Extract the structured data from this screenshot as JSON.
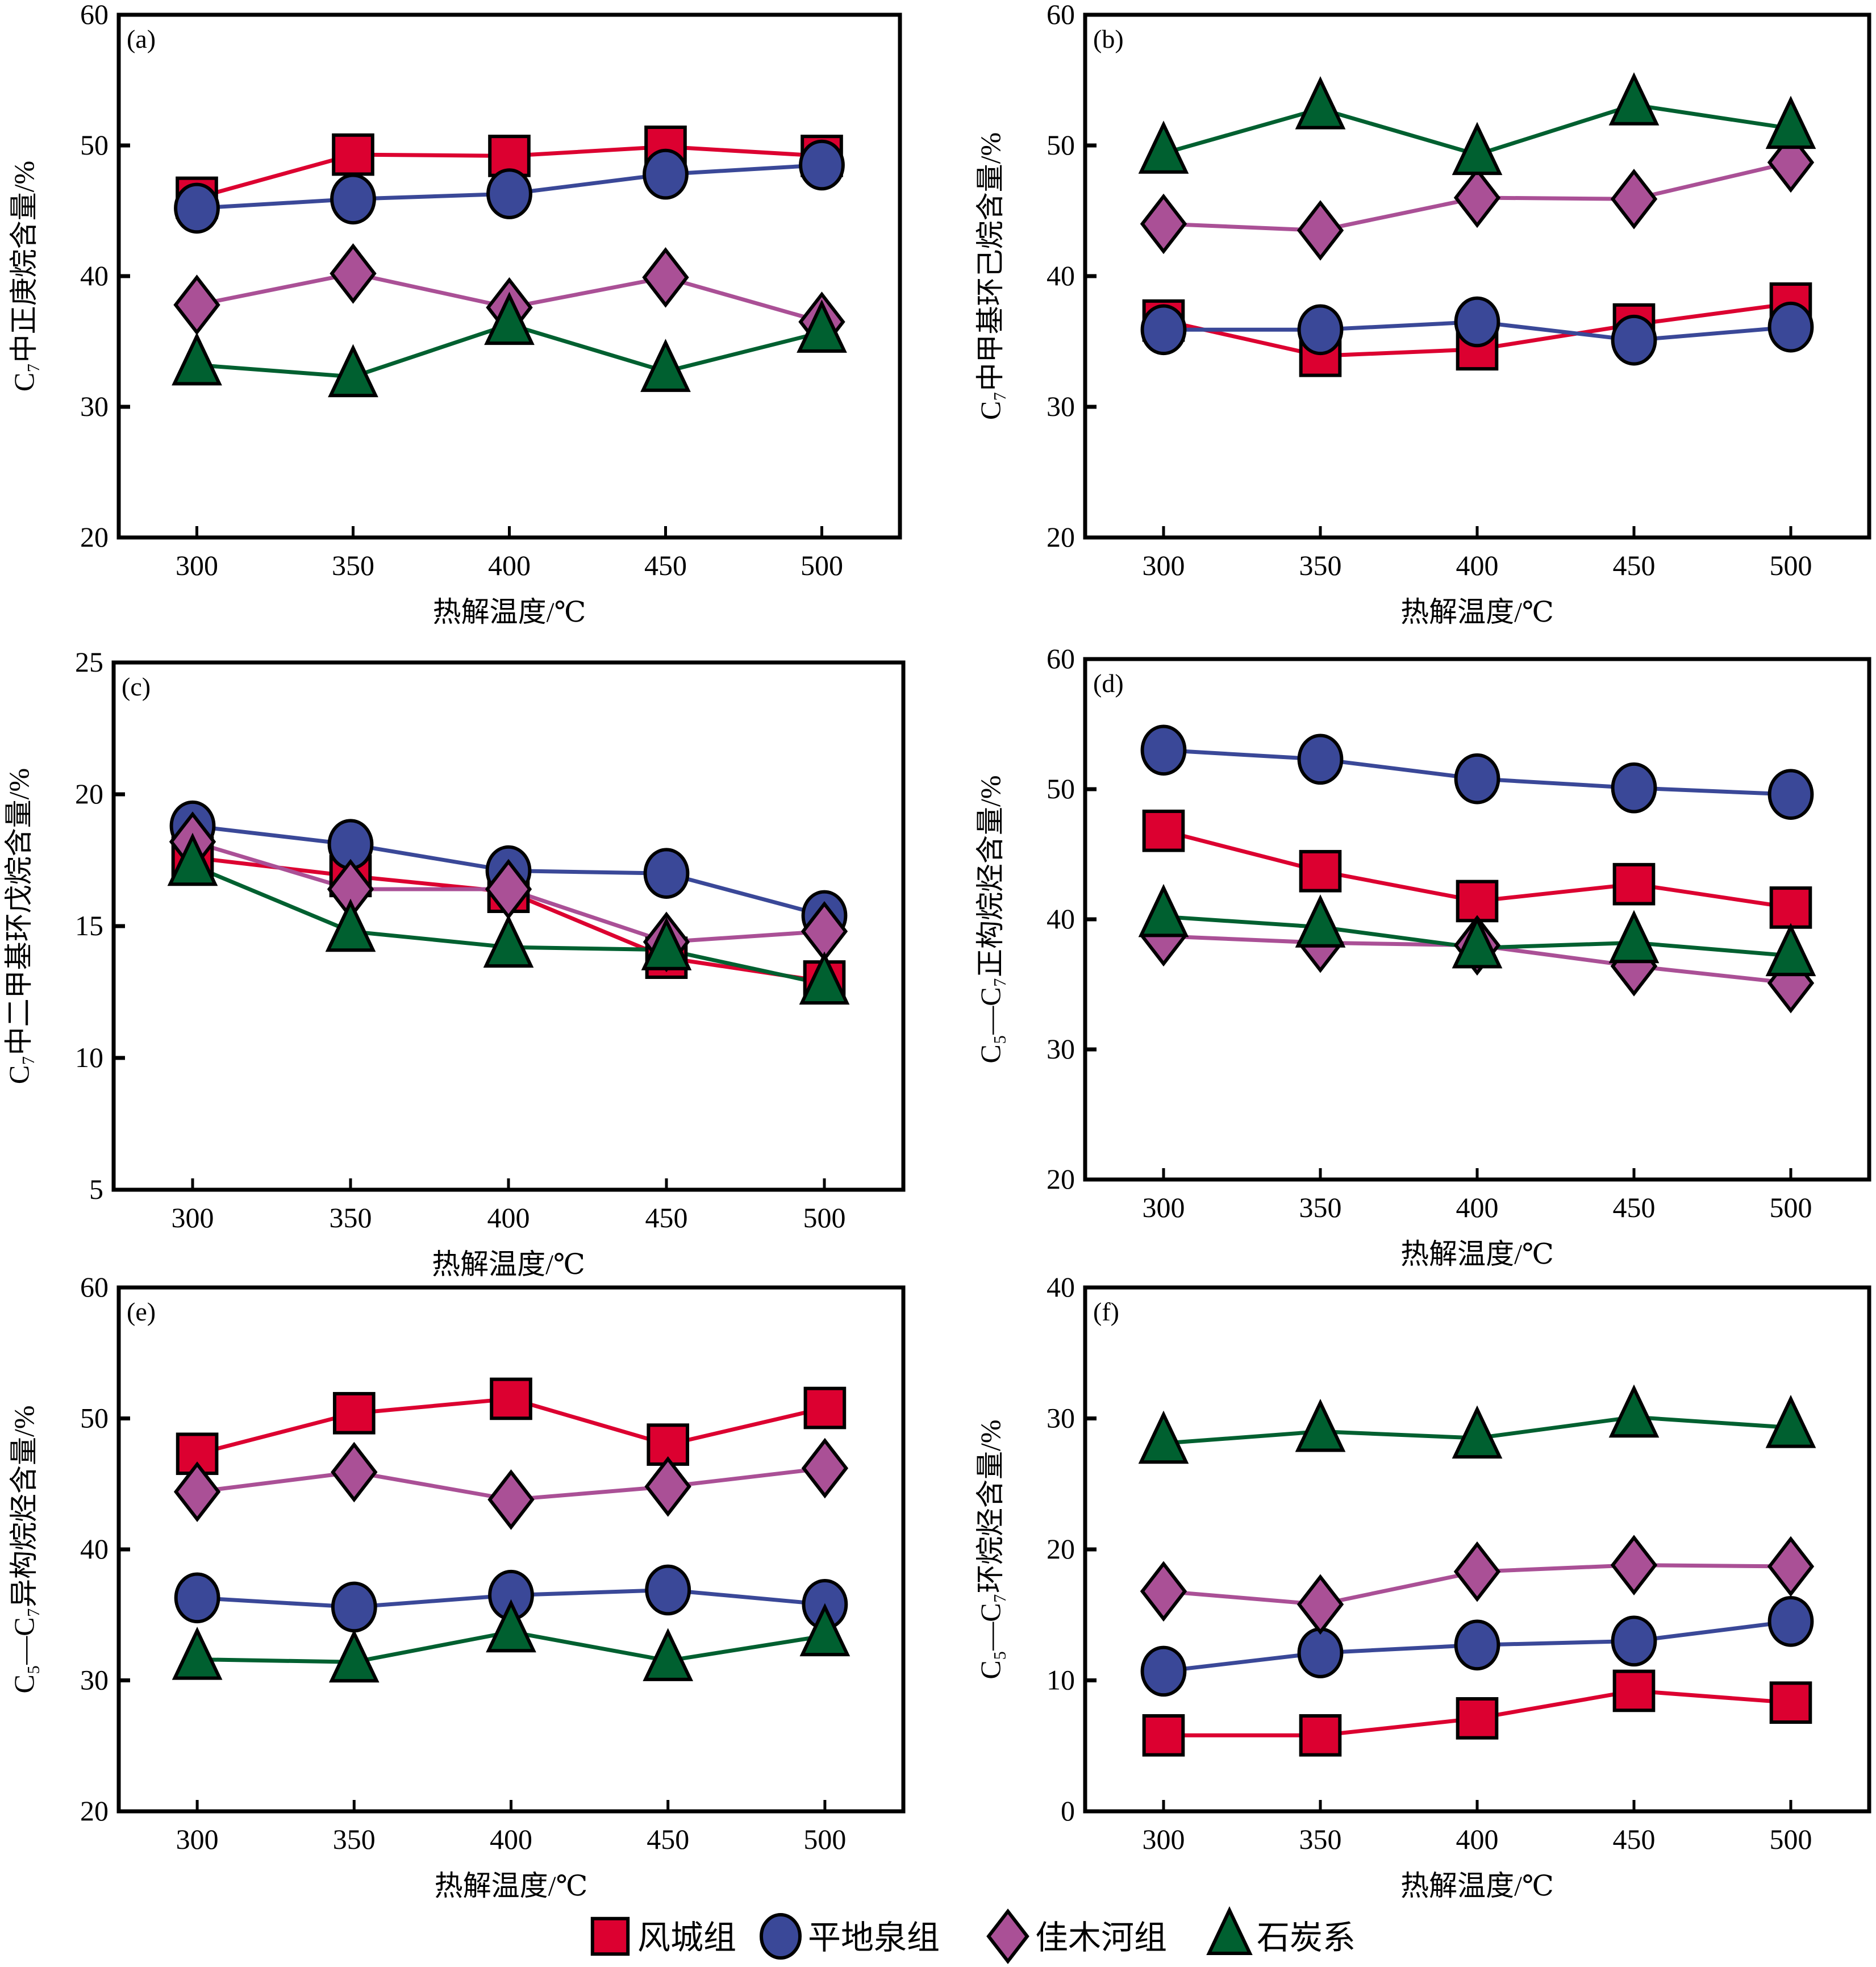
{
  "figure": {
    "legend": [
      {
        "name": "风城组",
        "marker": "square",
        "color": "#DC0030"
      },
      {
        "name": "平地泉组",
        "marker": "circle",
        "color": "#3A4898"
      },
      {
        "name": "佳木河组",
        "marker": "diamond",
        "color": "#AA5096"
      },
      {
        "name": "石炭系",
        "marker": "triangle",
        "color": "#006030"
      }
    ]
  },
  "chart_data": [
    {
      "type": "line",
      "panel": "(a)",
      "xlabel": "热解温度/℃",
      "ylabel": "C₇中正庚烷含量/%",
      "x": [
        300,
        350,
        400,
        450,
        500
      ],
      "xticks": [
        300,
        350,
        400,
        450,
        500
      ],
      "ylim": [
        20,
        60
      ],
      "yticks": [
        20,
        30,
        40,
        50,
        60
      ],
      "grid": false,
      "series": [
        {
          "name": "风城组",
          "values": [
            46.0,
            49.3,
            49.2,
            49.9,
            49.2
          ]
        },
        {
          "name": "平地泉组",
          "values": [
            45.2,
            45.9,
            46.3,
            47.8,
            48.5
          ]
        },
        {
          "name": "佳木河组",
          "values": [
            37.8,
            40.2,
            37.6,
            39.9,
            36.5
          ]
        },
        {
          "name": "石炭系",
          "values": [
            33.2,
            32.3,
            36.3,
            32.7,
            35.7
          ]
        }
      ]
    },
    {
      "type": "line",
      "panel": "(b)",
      "xlabel": "热解温度/℃",
      "ylabel": "C₇中甲基环己烷含量/%",
      "x": [
        300,
        350,
        400,
        450,
        500
      ],
      "xticks": [
        300,
        350,
        400,
        450,
        500
      ],
      "ylim": [
        20,
        60
      ],
      "yticks": [
        20,
        30,
        40,
        50,
        60
      ],
      "grid": false,
      "series": [
        {
          "name": "风城组",
          "values": [
            36.6,
            33.9,
            34.4,
            36.3,
            37.9
          ]
        },
        {
          "name": "平地泉组",
          "values": [
            35.9,
            35.9,
            36.5,
            35.1,
            36.1
          ]
        },
        {
          "name": "佳木河组",
          "values": [
            44.0,
            43.5,
            46.0,
            45.9,
            48.7
          ]
        },
        {
          "name": "石炭系",
          "values": [
            49.4,
            52.8,
            49.3,
            53.1,
            51.3
          ]
        }
      ]
    },
    {
      "type": "line",
      "panel": "(c)",
      "xlabel": "热解温度/℃",
      "ylabel": "C₇中二甲基环戊烷含量/%",
      "x": [
        300,
        350,
        400,
        450,
        500
      ],
      "xticks": [
        300,
        350,
        400,
        450,
        500
      ],
      "ylim": [
        5,
        25
      ],
      "yticks": [
        5,
        10,
        15,
        20,
        25
      ],
      "grid": false,
      "series": [
        {
          "name": "风城组",
          "values": [
            17.6,
            16.9,
            16.3,
            13.8,
            12.9
          ]
        },
        {
          "name": "平地泉组",
          "values": [
            18.8,
            18.1,
            17.1,
            17.0,
            15.4
          ]
        },
        {
          "name": "佳木河组",
          "values": [
            18.2,
            16.4,
            16.4,
            14.4,
            14.8
          ]
        },
        {
          "name": "石炭系",
          "values": [
            17.3,
            14.8,
            14.2,
            14.1,
            12.8
          ]
        }
      ]
    },
    {
      "type": "line",
      "panel": "(d)",
      "xlabel": "热解温度/℃",
      "ylabel": "C₅—C₇正构烷烃含量/%",
      "x": [
        300,
        350,
        400,
        450,
        500
      ],
      "xticks": [
        300,
        350,
        400,
        450,
        500
      ],
      "ylim": [
        20,
        60
      ],
      "yticks": [
        20,
        30,
        40,
        50,
        60
      ],
      "grid": false,
      "series": [
        {
          "name": "风城组",
          "values": [
            46.8,
            43.7,
            41.4,
            42.7,
            40.9
          ]
        },
        {
          "name": "平地泉组",
          "values": [
            53.0,
            52.3,
            50.8,
            50.1,
            49.6
          ]
        },
        {
          "name": "佳木河组",
          "values": [
            38.7,
            38.2,
            38.0,
            36.4,
            35.1
          ]
        },
        {
          "name": "石炭系",
          "values": [
            40.2,
            39.4,
            37.8,
            38.2,
            37.2
          ]
        }
      ]
    },
    {
      "type": "line",
      "panel": "(e)",
      "xlabel": "热解温度/℃",
      "ylabel": "C₅—C₇异构烷烃含量/%",
      "x": [
        300,
        350,
        400,
        450,
        500
      ],
      "xticks": [
        300,
        350,
        400,
        450,
        500
      ],
      "ylim": [
        20,
        60
      ],
      "yticks": [
        20,
        30,
        40,
        50,
        60
      ],
      "grid": false,
      "series": [
        {
          "name": "风城组",
          "values": [
            47.3,
            50.4,
            51.5,
            48.0,
            50.8
          ]
        },
        {
          "name": "平地泉组",
          "values": [
            36.3,
            35.6,
            36.5,
            36.9,
            35.8
          ]
        },
        {
          "name": "佳木河组",
          "values": [
            44.4,
            45.9,
            43.8,
            44.8,
            46.2
          ]
        },
        {
          "name": "石炭系",
          "values": [
            31.6,
            31.4,
            33.7,
            31.5,
            33.4
          ]
        }
      ]
    },
    {
      "type": "line",
      "panel": "(f)",
      "xlabel": "热解温度/℃",
      "ylabel": "C₅—C₇环烷烃含量/%",
      "x": [
        300,
        350,
        400,
        450,
        500
      ],
      "xticks": [
        300,
        350,
        400,
        450,
        500
      ],
      "ylim": [
        0,
        40
      ],
      "yticks": [
        0,
        10,
        20,
        30,
        40
      ],
      "grid": false,
      "series": [
        {
          "name": "风城组",
          "values": [
            5.8,
            5.8,
            7.1,
            9.2,
            8.3
          ]
        },
        {
          "name": "平地泉组",
          "values": [
            10.7,
            12.1,
            12.7,
            13.0,
            14.5
          ]
        },
        {
          "name": "佳木河组",
          "values": [
            16.8,
            15.8,
            18.3,
            18.8,
            18.7
          ]
        },
        {
          "name": "石炭系",
          "values": [
            28.1,
            29.0,
            28.5,
            30.1,
            29.3
          ]
        }
      ]
    }
  ]
}
